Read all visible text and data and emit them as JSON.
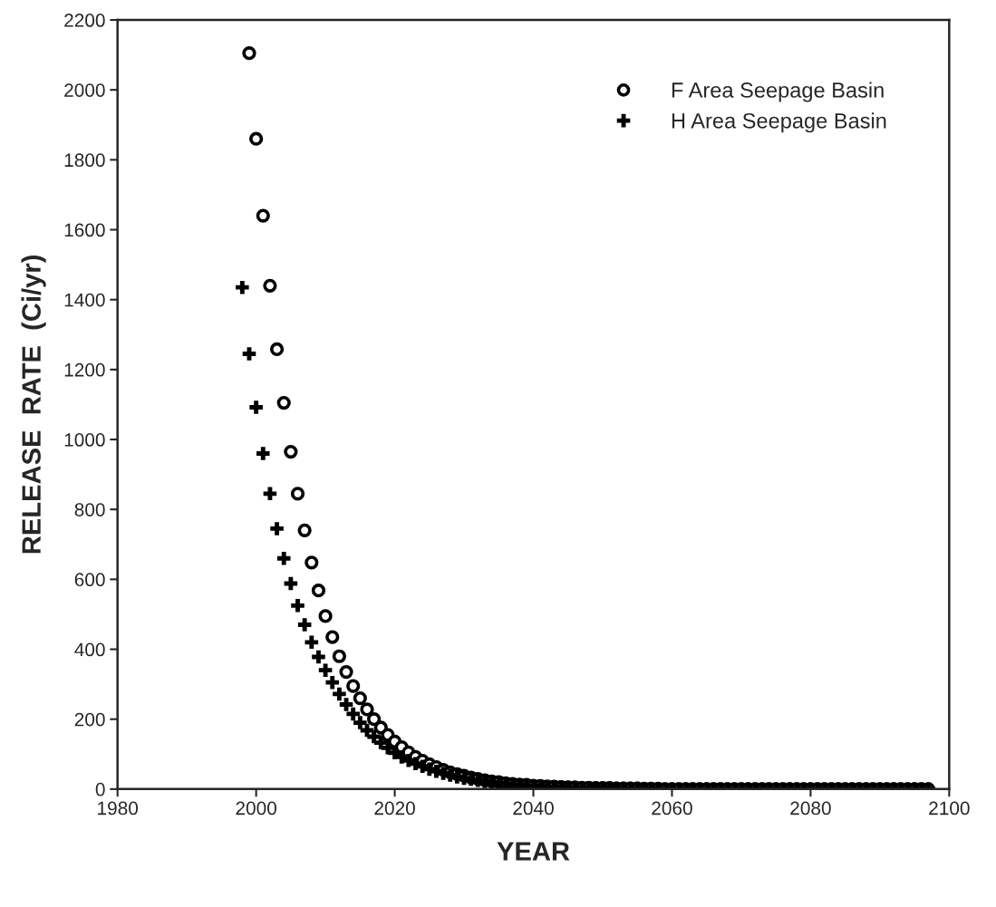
{
  "chart_data": {
    "type": "scatter",
    "xlabel": "YEAR",
    "ylabel": "RELEASE  RATE  (Ci/yr)",
    "xlim": [
      1980,
      2100
    ],
    "xticks": [
      1980,
      2000,
      2020,
      2040,
      2060,
      2080,
      2100
    ],
    "ylim": [
      0,
      2200
    ],
    "yticks": [
      0,
      200,
      400,
      600,
      800,
      1000,
      1200,
      1400,
      1600,
      1800,
      2000,
      2200
    ],
    "grid": false,
    "legend": "top right",
    "series": [
      {
        "name": "F Area Seepage Basin",
        "color": "#000000",
        "marker": "circle",
        "x": [
          1999,
          2000,
          2001,
          2002,
          2003,
          2004,
          2005,
          2006,
          2007,
          2008,
          2009,
          2010,
          2011,
          2012,
          2013,
          2014,
          2015,
          2016,
          2017,
          2018,
          2019,
          2020,
          2021,
          2022,
          2023,
          2024,
          2025,
          2026,
          2027,
          2028,
          2029,
          2030,
          2031,
          2032,
          2033,
          2034,
          2035,
          2036,
          2037,
          2038,
          2039,
          2040,
          2041,
          2042,
          2043,
          2044,
          2045,
          2046,
          2047,
          2048,
          2049,
          2050,
          2051,
          2052,
          2053,
          2054,
          2055,
          2056,
          2057,
          2058,
          2059,
          2060,
          2061,
          2062,
          2063,
          2064,
          2065,
          2066,
          2067,
          2068,
          2069,
          2070,
          2071,
          2072,
          2073,
          2074,
          2075,
          2076,
          2077,
          2078,
          2079,
          2080,
          2081,
          2082,
          2083,
          2084,
          2085,
          2086,
          2087,
          2088,
          2089,
          2090,
          2091,
          2092,
          2093,
          2094,
          2095,
          2096,
          2097
        ],
        "values": [
          2105,
          1860,
          1640,
          1440,
          1258,
          1105,
          965,
          845,
          740,
          648,
          568,
          495,
          435,
          380,
          335,
          295,
          260,
          228,
          200,
          176,
          155,
          136,
          120,
          105,
          92,
          81,
          71,
          63,
          55,
          48,
          43,
          38,
          33,
          29,
          25,
          22,
          20,
          17,
          15,
          13,
          12,
          10,
          9,
          8,
          7,
          6,
          5,
          5,
          4,
          4,
          3,
          3,
          3,
          2,
          2,
          2,
          2,
          1,
          1,
          1,
          0,
          0,
          0,
          0,
          0,
          0,
          0,
          0,
          0,
          0,
          0,
          0,
          0,
          0,
          0,
          0,
          0,
          0,
          0,
          0,
          0,
          0,
          0,
          0,
          0,
          0,
          0,
          0,
          0,
          0,
          0,
          0,
          0,
          0,
          0,
          0,
          0,
          0,
          0
        ]
      },
      {
        "name": "H Area Seepage Basin",
        "color": "#000000",
        "marker": "cross",
        "x": [
          1998,
          1999,
          2000,
          2001,
          2002,
          2003,
          2004,
          2005,
          2006,
          2007,
          2008,
          2009,
          2010,
          2011,
          2012,
          2013,
          2014,
          2015,
          2016,
          2017,
          2018,
          2019,
          2020,
          2021,
          2022,
          2023,
          2024,
          2025,
          2026,
          2027,
          2028,
          2029,
          2030,
          2031,
          2032,
          2033,
          2034,
          2035,
          2036,
          2037,
          2038,
          2039,
          2040,
          2041,
          2042,
          2043,
          2044,
          2045,
          2046,
          2047,
          2048,
          2049,
          2050,
          2051,
          2052,
          2053,
          2054,
          2055,
          2056,
          2057,
          2058,
          2059,
          2060,
          2061,
          2062,
          2063,
          2064,
          2065,
          2066,
          2067,
          2068,
          2069,
          2070,
          2071,
          2072,
          2073,
          2074,
          2075,
          2076,
          2077,
          2078,
          2079,
          2080,
          2081,
          2082,
          2083,
          2084,
          2085,
          2086,
          2087,
          2088,
          2089,
          2090,
          2091,
          2092,
          2093,
          2094,
          2095,
          2096,
          2097
        ],
        "values": [
          1435,
          1245,
          1092,
          960,
          845,
          745,
          660,
          588,
          525,
          470,
          420,
          378,
          340,
          305,
          272,
          242,
          215,
          190,
          168,
          150,
          133,
          118,
          104,
          92,
          82,
          73,
          65,
          57,
          51,
          45,
          40,
          35,
          31,
          28,
          25,
          22,
          19,
          17,
          15,
          13,
          12,
          10,
          9,
          8,
          7,
          6,
          6,
          5,
          4,
          4,
          4,
          3,
          3,
          3,
          2,
          2,
          2,
          2,
          1,
          1,
          0,
          0,
          0,
          0,
          0,
          0,
          0,
          0,
          0,
          0,
          0,
          0,
          0,
          0,
          0,
          0,
          0,
          0,
          0,
          0,
          0,
          0,
          0,
          0,
          0,
          0,
          0,
          0,
          0,
          0,
          0,
          0,
          0,
          0,
          0,
          0,
          0,
          0,
          0,
          0
        ]
      }
    ]
  }
}
